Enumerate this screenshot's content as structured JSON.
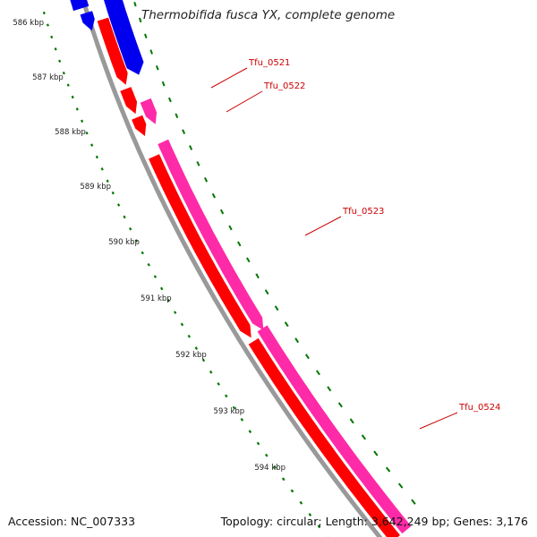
{
  "title": "Thermobifida fusca YX, complete genome",
  "footer": {
    "accession": "Accession: NC_007333",
    "summary": "Topology: circular; Length: 3,642,249 bp; Genes: 3,176"
  },
  "colors": {
    "backbone": "#999999",
    "forward_gene": "#ff0000",
    "forward_gene_alt": "#ff2aa8",
    "reverse_gene": "#0000ee",
    "tick": "#007700",
    "gene_label": "#cc0000"
  },
  "ruler": {
    "tick_labels": [
      "586 kbp",
      "587 kbp",
      "588 kbp",
      "589 kbp",
      "590 kbp",
      "591 kbp",
      "592 kbp",
      "593 kbp",
      "594 kbp"
    ]
  },
  "genes": [
    {
      "label": "Tfu_0521",
      "color": "forward_gene"
    },
    {
      "label": "Tfu_0522",
      "color": "forward_gene_alt"
    },
    {
      "label": "Tfu_0523",
      "color": "forward_gene_alt"
    },
    {
      "label": "Tfu_0524",
      "color": "forward_gene_alt"
    }
  ]
}
